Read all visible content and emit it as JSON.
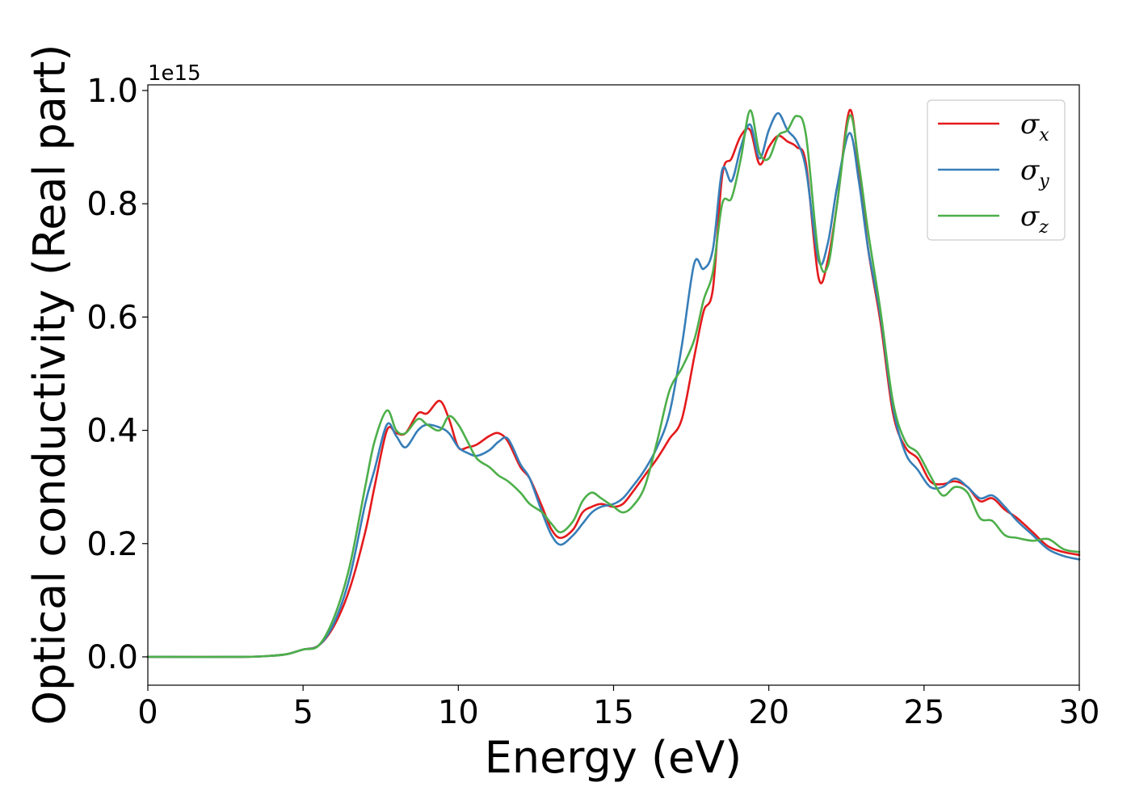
{
  "chart_data": {
    "type": "line",
    "xlabel": "Energy (eV)",
    "ylabel": "Optical conductivity (Real part)",
    "y_offset_label": "1e15",
    "xlim": [
      0,
      30
    ],
    "ylim": [
      -0.05,
      1.01
    ],
    "x_ticks": [
      0,
      5,
      10,
      15,
      20,
      25,
      30
    ],
    "x_tick_labels": [
      "0",
      "5",
      "10",
      "15",
      "20",
      "25",
      "30"
    ],
    "y_ticks": [
      0.0,
      0.2,
      0.4,
      0.6,
      0.8,
      1.0
    ],
    "y_tick_labels": [
      "0.0",
      "0.2",
      "0.4",
      "0.6",
      "0.8",
      "1.0"
    ],
    "grid": false,
    "legend_position": "top-right",
    "x": [
      0,
      3,
      4,
      4.5,
      5,
      5.5,
      6,
      6.5,
      7,
      7.3,
      7.7,
      8,
      8.3,
      8.7,
      9,
      9.4,
      9.7,
      10,
      10.3,
      10.6,
      11,
      11.3,
      11.6,
      12,
      12.3,
      12.7,
      13,
      13.3,
      13.7,
      14,
      14.3,
      14.6,
      15,
      15.3,
      15.6,
      16,
      16.4,
      16.8,
      17.2,
      17.6,
      17.9,
      18.2,
      18.5,
      18.8,
      19.1,
      19.4,
      19.7,
      20,
      20.3,
      20.6,
      20.9,
      21.2,
      21.6,
      21.9,
      22.2,
      22.6,
      22.9,
      23.2,
      23.6,
      24,
      24.4,
      24.8,
      25.2,
      25.6,
      26,
      26.4,
      26.8,
      27.2,
      27.6,
      28,
      28.5,
      29,
      29.5,
      30
    ],
    "series": [
      {
        "name": "σx",
        "label_main": "σ",
        "label_sub": "x",
        "color": "#e41a1c",
        "values": [
          0.0,
          0.0,
          0.002,
          0.005,
          0.013,
          0.02,
          0.055,
          0.12,
          0.22,
          0.3,
          0.4,
          0.395,
          0.395,
          0.43,
          0.43,
          0.452,
          0.42,
          0.37,
          0.37,
          0.375,
          0.39,
          0.395,
          0.38,
          0.335,
          0.315,
          0.265,
          0.225,
          0.21,
          0.225,
          0.255,
          0.265,
          0.27,
          0.265,
          0.27,
          0.29,
          0.32,
          0.35,
          0.385,
          0.42,
          0.53,
          0.61,
          0.65,
          0.85,
          0.88,
          0.92,
          0.93,
          0.87,
          0.9,
          0.92,
          0.91,
          0.9,
          0.87,
          0.67,
          0.7,
          0.8,
          0.965,
          0.86,
          0.72,
          0.59,
          0.43,
          0.37,
          0.35,
          0.31,
          0.305,
          0.31,
          0.3,
          0.275,
          0.28,
          0.26,
          0.245,
          0.22,
          0.195,
          0.185,
          0.18
        ]
      },
      {
        "name": "σy",
        "label_main": "σ",
        "label_sub": "y",
        "color": "#377eb8",
        "values": [
          0.0,
          0.0,
          0.002,
          0.005,
          0.013,
          0.02,
          0.06,
          0.14,
          0.27,
          0.33,
          0.41,
          0.39,
          0.37,
          0.4,
          0.41,
          0.405,
          0.395,
          0.37,
          0.36,
          0.355,
          0.365,
          0.38,
          0.385,
          0.34,
          0.315,
          0.255,
          0.215,
          0.198,
          0.215,
          0.235,
          0.255,
          0.265,
          0.27,
          0.28,
          0.3,
          0.33,
          0.37,
          0.43,
          0.55,
          0.695,
          0.685,
          0.72,
          0.86,
          0.84,
          0.9,
          0.94,
          0.88,
          0.93,
          0.96,
          0.93,
          0.91,
          0.86,
          0.7,
          0.73,
          0.83,
          0.925,
          0.84,
          0.72,
          0.6,
          0.44,
          0.36,
          0.33,
          0.3,
          0.3,
          0.315,
          0.3,
          0.28,
          0.285,
          0.265,
          0.24,
          0.215,
          0.19,
          0.178,
          0.172
        ]
      },
      {
        "name": "σz",
        "label_main": "σ",
        "label_sub": "z",
        "color": "#4daf4a",
        "values": [
          0.0,
          0.0,
          0.002,
          0.005,
          0.013,
          0.02,
          0.07,
          0.16,
          0.3,
          0.38,
          0.435,
          0.4,
          0.395,
          0.42,
          0.41,
          0.4,
          0.425,
          0.41,
          0.38,
          0.35,
          0.335,
          0.32,
          0.31,
          0.29,
          0.27,
          0.255,
          0.235,
          0.22,
          0.24,
          0.275,
          0.29,
          0.28,
          0.265,
          0.255,
          0.265,
          0.3,
          0.38,
          0.47,
          0.51,
          0.56,
          0.63,
          0.68,
          0.8,
          0.81,
          0.88,
          0.965,
          0.89,
          0.88,
          0.92,
          0.93,
          0.955,
          0.92,
          0.71,
          0.69,
          0.8,
          0.955,
          0.87,
          0.75,
          0.61,
          0.45,
          0.38,
          0.36,
          0.32,
          0.285,
          0.3,
          0.29,
          0.245,
          0.24,
          0.215,
          0.21,
          0.205,
          0.208,
          0.19,
          0.185
        ]
      }
    ]
  }
}
